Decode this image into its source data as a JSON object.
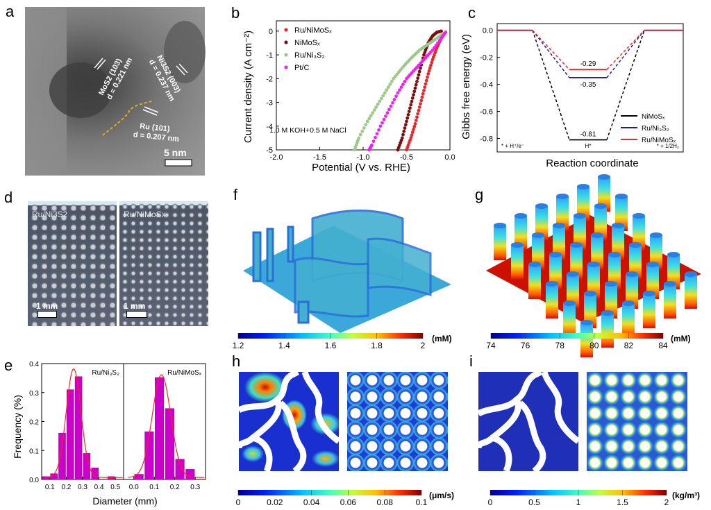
{
  "panel_letters": [
    "a",
    "b",
    "c",
    "d",
    "e",
    "f",
    "g",
    "h",
    "i"
  ],
  "panel_a": {
    "type": "TEM image",
    "labels": [
      {
        "plane": "MoS2 (103)",
        "d": "d = 0.221 nm"
      },
      {
        "plane": "Ni3S2 (003)",
        "d": "d = 0.237 nm"
      },
      {
        "plane": "Ru (101)",
        "d": "d = 0.207 nm"
      }
    ],
    "scalebar": "5 nm"
  },
  "panel_d": {
    "type": "optical images",
    "images": [
      {
        "label": "Ru/Ni3S2",
        "scalebar": "1 mm"
      },
      {
        "label": "Ru/NiMoSx",
        "scalebar": "1 mm"
      }
    ]
  },
  "panel_f": {
    "colorbar": {
      "ticks": [
        "1.2",
        "1.4",
        "1.6",
        "1.8",
        "2"
      ],
      "unit": "(mM)",
      "range": [
        1.2,
        2.0
      ]
    }
  },
  "panel_g": {
    "colorbar": {
      "ticks": [
        "74",
        "76",
        "78",
        "80",
        "82",
        "84"
      ],
      "unit": "(mM)",
      "range": [
        74,
        84
      ]
    }
  },
  "panel_h": {
    "colorbar": {
      "ticks": [
        "0",
        "0.02",
        "0.04",
        "0.06",
        "0.08",
        "0.1"
      ],
      "unit": "(μm/s)",
      "range": [
        0,
        0.1
      ]
    }
  },
  "panel_i": {
    "colorbar": {
      "ticks": [
        "0",
        "0.5",
        "1",
        "1.5",
        "2"
      ],
      "unit": "(kg/m³)",
      "range": [
        0,
        2
      ]
    }
  },
  "colors": {
    "ru_nimosx": "#e8262b",
    "nimosx": "#7a1010",
    "ru_ni3s2": "#9cc98a",
    "ptc": "#ee22ee",
    "bar": "#cc00cc",
    "fit": "#ff2020",
    "gibbs_nimosx": "#000000",
    "gibbs_ru_ni3s2": "#1a1aa8",
    "gibbs_ru_nimosx": "#e8262b"
  },
  "chart_data": [
    {
      "id": "b",
      "type": "scatter",
      "title": "",
      "xlabel": "Potential (V vs. RHE)",
      "ylabel": "Current density (A cm⁻²)",
      "xlim": [
        -2.0,
        0.0
      ],
      "ylim": [
        -5,
        0.2
      ],
      "xticks": [
        "-2.0",
        "-1.5",
        "-1.0",
        "-0.5",
        "0.0"
      ],
      "yticks": [
        "0",
        "-1",
        "-2",
        "-3",
        "-4",
        "-5"
      ],
      "annotation": "1.0 M KOH+0.5 M NaCl",
      "legend_position": "top-left",
      "series": [
        {
          "name": "Ru/NiMoSx",
          "legend": "Ru/NiMoSₓ",
          "x": [
            -0.05,
            -0.1,
            -0.15,
            -0.2,
            -0.25,
            -0.3,
            -0.35,
            -0.4,
            -0.45,
            -0.5
          ],
          "y": [
            -0.05,
            -0.3,
            -0.7,
            -1.2,
            -1.8,
            -2.5,
            -3.2,
            -3.9,
            -4.5,
            -5.0
          ]
        },
        {
          "name": "NiMoSx",
          "legend": "NiMoSₓ",
          "x": [
            -0.1,
            -0.15,
            -0.2,
            -0.25,
            -0.3,
            -0.35,
            -0.4,
            -0.45,
            -0.5,
            -0.55,
            -0.6
          ],
          "y": [
            0.0,
            -0.05,
            -0.2,
            -0.5,
            -1.0,
            -1.7,
            -2.4,
            -3.1,
            -3.8,
            -4.5,
            -5.0
          ]
        },
        {
          "name": "Ru/Ni3S2",
          "legend": "Ru/Ni₃S₂",
          "x": [
            -0.05,
            -0.15,
            -0.25,
            -0.35,
            -0.45,
            -0.55,
            -0.65,
            -0.75,
            -0.85,
            -0.95,
            -1.05,
            -1.1
          ],
          "y": [
            -0.05,
            -0.3,
            -0.55,
            -0.8,
            -1.15,
            -1.55,
            -2.0,
            -2.6,
            -3.2,
            -3.8,
            -4.5,
            -5.0
          ]
        },
        {
          "name": "Pt/C",
          "legend": "Pt/C",
          "x": [
            -0.05,
            -0.1,
            -0.2,
            -0.3,
            -0.4,
            -0.5,
            -0.6,
            -0.7,
            -0.8,
            -0.9,
            -0.93
          ],
          "y": [
            -0.05,
            -0.3,
            -0.8,
            -1.2,
            -1.6,
            -2.0,
            -2.6,
            -3.3,
            -4.0,
            -4.8,
            -5.0
          ]
        }
      ]
    },
    {
      "id": "c",
      "type": "line",
      "title": "",
      "xlabel": "Reaction coordinate",
      "ylabel": "Gibbs free energy (eV)",
      "ylim": [
        -0.9,
        0.05
      ],
      "yticks": [
        "0.0",
        "-0.2",
        "-0.4",
        "-0.6",
        "-0.8"
      ],
      "states": [
        "* + H⁺/e⁻",
        "H*",
        "* + 1/2H₂"
      ],
      "legend_position": "bottom-right",
      "series": [
        {
          "name": "NiMoSx",
          "legend": "NiMoSₓ",
          "values": [
            0.0,
            -0.81,
            0.0
          ],
          "label": "-0.81"
        },
        {
          "name": "Ru/Ni3S2",
          "legend": "Ru/Ni₃S₂",
          "values": [
            0.0,
            -0.35,
            0.0
          ],
          "label": "-0.35"
        },
        {
          "name": "Ru/NiMoSx",
          "legend": "Ru/NiMoSₓ",
          "values": [
            0.0,
            -0.29,
            0.0
          ],
          "label": "-0.29"
        }
      ]
    },
    {
      "id": "e",
      "type": "bar",
      "ylabel": "Frequency (%)",
      "xlabel": "Diameter (mm)",
      "ylim": [
        0,
        0.4
      ],
      "yticks": [
        "0.0",
        "0.1",
        "0.2",
        "0.3",
        "0.4"
      ],
      "subplots": [
        {
          "name": "Ru/Ni3S2",
          "label": "Ru/Ni₃S₂",
          "xlim": [
            0.05,
            0.55
          ],
          "xticks": [
            "0.1",
            "0.2",
            "0.3",
            "0.4",
            "0.5"
          ],
          "x": [
            0.075,
            0.125,
            0.175,
            0.225,
            0.275,
            0.325,
            0.375,
            0.425,
            0.475
          ],
          "values": [
            0.01,
            0.02,
            0.16,
            0.31,
            0.355,
            0.09,
            0.04,
            0.0,
            0.01
          ],
          "fit": {
            "type": "gaussian",
            "center": 0.245,
            "peak": 0.375
          }
        },
        {
          "name": "Ru/NiMoSx",
          "label": "Ru/NiMoSₓ",
          "xlim": [
            -0.05,
            0.35
          ],
          "xticks": [
            "0.0",
            "0.1",
            "0.2",
            "0.3"
          ],
          "x": [
            0.025,
            0.075,
            0.125,
            0.175,
            0.225,
            0.275
          ],
          "values": [
            0.018,
            0.165,
            0.352,
            0.245,
            0.07,
            0.035
          ],
          "fit": {
            "type": "gaussian",
            "center": 0.135,
            "peak": 0.355
          }
        }
      ]
    }
  ]
}
